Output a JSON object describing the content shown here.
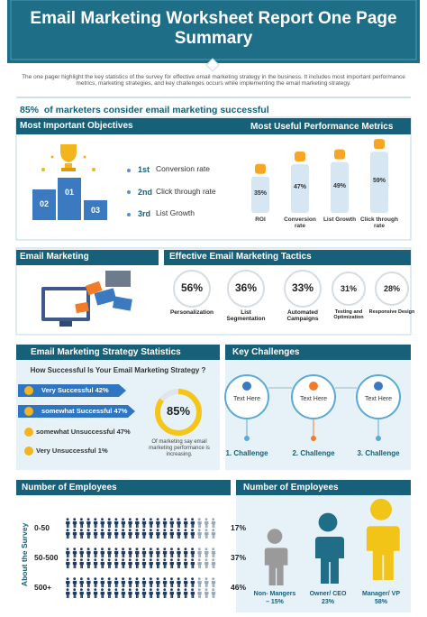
{
  "header": {
    "title": "Email Marketing Worksheet Report One Page Summary",
    "description": "The one pager highlight the key statistics  of the survey for effective email marketing strategy in the business. It includes most important performance metrics, marketing strategies, and key challenges occurs while implementing the email marketing strategy."
  },
  "headline": "85%  of marketers consider email marketing successful",
  "objectives": {
    "title": "Most Important Objectives",
    "podium": [
      "01",
      "02",
      "03"
    ],
    "items": [
      {
        "rank": "1st",
        "label": "Conversion rate"
      },
      {
        "rank": "2nd",
        "label": "Click through rate"
      },
      {
        "rank": "3rd",
        "label": "List Growth"
      }
    ]
  },
  "metrics": {
    "title": "Most Useful Performance Metrics",
    "categories": [
      "ROI",
      "Conversion rate",
      "List Growth",
      "Click through rate"
    ],
    "values": [
      35,
      47,
      49,
      59
    ],
    "value_labels": [
      "35%",
      "47%",
      "49%",
      "59%"
    ]
  },
  "email_marketing": {
    "title": "Email Marketing"
  },
  "tactics": {
    "title": "Effective Email Marketing Tactics",
    "items": [
      {
        "value": "56%",
        "label": "Personalization"
      },
      {
        "value": "36%",
        "label": "List Segmentation"
      },
      {
        "value": "33%",
        "label": "Automated Campaigns"
      },
      {
        "value": "31%",
        "label": "Testing and Optimization"
      },
      {
        "value": "28%",
        "label": "Responsive Design"
      }
    ]
  },
  "strategy": {
    "title": "Email Marketing Strategy Statistics",
    "question": "How Successful Is Your Email Marketing Strategy ?",
    "items": [
      "Very Successful 42%",
      "somewhat Successful 47%",
      "somewhat Unsuccessful 47%",
      "Very Unsuccessful 1%"
    ],
    "donut": {
      "value": 85,
      "label": "85%"
    },
    "donut_caption": "Of marketing say email marketing performance is increasing."
  },
  "challenges": {
    "title": "Key Challenges",
    "items": [
      {
        "text": "Text Here",
        "label": "1. Challenge"
      },
      {
        "text": "Text Here",
        "label": "2. Challenge"
      },
      {
        "text": "Text Here",
        "label": "3. Challenge"
      }
    ]
  },
  "employees_left": {
    "title": "Number of Employees",
    "axis_label": "About the Survey",
    "rows": [
      {
        "label": "0-50",
        "share": "17%"
      },
      {
        "label": "50-500",
        "share": "37%"
      },
      {
        "label": "500+",
        "share": "46%"
      }
    ]
  },
  "employees_right": {
    "title": "Number of Employees",
    "items": [
      {
        "lines": [
          "Non- Mangers",
          "– 15%"
        ]
      },
      {
        "lines": [
          "Owner/ CEO",
          "23%"
        ]
      },
      {
        "lines": [
          "Manager/ VP",
          "58%"
        ]
      }
    ]
  }
}
